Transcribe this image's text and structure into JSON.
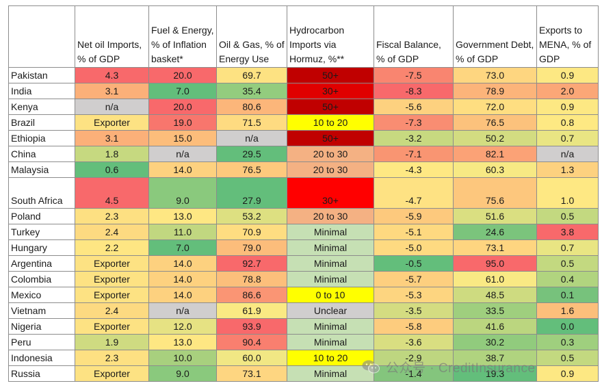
{
  "columns": [
    "",
    "Net oil Imports, % of GDP",
    "Fuel & Energy, % of Inflation basket*",
    "Oil & Gas, % of Energy Use",
    "Hydrocarbon Imports via Hormuz, %**",
    "Fiscal Balance, % of GDP",
    "Government Debt, % of GDP",
    "Exports to MENA, % of GDP"
  ],
  "rows": [
    {
      "country": "Pakistan",
      "cells": [
        {
          "v": "4.3",
          "c": "#f8696b"
        },
        {
          "v": "20.0",
          "c": "#f8696b"
        },
        {
          "v": "69.7",
          "c": "#fde282"
        },
        {
          "v": "50+",
          "c": "#c00000"
        },
        {
          "v": "-7.5",
          "c": "#f98570"
        },
        {
          "v": "73.0",
          "c": "#fed680"
        },
        {
          "v": "0.9",
          "c": "#fde883"
        }
      ]
    },
    {
      "country": "India",
      "cells": [
        {
          "v": "3.1",
          "c": "#fbb079"
        },
        {
          "v": "7.0",
          "c": "#63be7b"
        },
        {
          "v": "35.4",
          "c": "#93cc7e"
        },
        {
          "v": "30+",
          "c": "#e00000"
        },
        {
          "v": "-8.3",
          "c": "#f8696b"
        },
        {
          "v": "78.9",
          "c": "#fcb47a"
        },
        {
          "v": "2.0",
          "c": "#fba777"
        }
      ]
    },
    {
      "country": "Kenya",
      "cells": [
        {
          "v": "n/a",
          "c": "#d0cece"
        },
        {
          "v": "20.0",
          "c": "#f8696b"
        },
        {
          "v": "80.6",
          "c": "#fcb67a"
        },
        {
          "v": "50+",
          "c": "#c00000"
        },
        {
          "v": "-5.6",
          "c": "#fdd17f"
        },
        {
          "v": "72.0",
          "c": "#fede81"
        },
        {
          "v": "0.9",
          "c": "#fde883"
        }
      ]
    },
    {
      "country": "Brazil",
      "cells": [
        {
          "v": "Exporter",
          "c": "#fde283"
        },
        {
          "v": "19.0",
          "c": "#f8766d"
        },
        {
          "v": "71.5",
          "c": "#fedb81"
        },
        {
          "v": "10 to 20",
          "c": "#ffff00"
        },
        {
          "v": "-7.3",
          "c": "#f98d72"
        },
        {
          "v": "76.5",
          "c": "#fcc27c"
        },
        {
          "v": "0.8",
          "c": "#fee983"
        }
      ]
    },
    {
      "country": "Ethiopia",
      "cells": [
        {
          "v": "3.1",
          "c": "#fbb079"
        },
        {
          "v": "15.0",
          "c": "#fcbd7b"
        },
        {
          "v": "n/a",
          "c": "#d0cece"
        },
        {
          "v": "50+",
          "c": "#c00000"
        },
        {
          "v": "-3.2",
          "c": "#c7d980"
        },
        {
          "v": "50.2",
          "c": "#d3dc81"
        },
        {
          "v": "0.7",
          "c": "#e9e583"
        }
      ]
    },
    {
      "country": "China",
      "cells": [
        {
          "v": "1.8",
          "c": "#c6d980"
        },
        {
          "v": "n/a",
          "c": "#d0cece"
        },
        {
          "v": "29.5",
          "c": "#63be7b"
        },
        {
          "v": "20 to 30",
          "c": "#f4b183"
        },
        {
          "v": "-7.1",
          "c": "#f99572"
        },
        {
          "v": "82.1",
          "c": "#fba276"
        },
        {
          "v": "n/a",
          "c": "#d0cece"
        }
      ]
    },
    {
      "country": "Malaysia",
      "cells": [
        {
          "v": "0.6",
          "c": "#63be7b"
        },
        {
          "v": "14.0",
          "c": "#fdd17f"
        },
        {
          "v": "76.5",
          "c": "#fdc97d"
        },
        {
          "v": "20 to 30",
          "c": "#f4b183"
        },
        {
          "v": "-4.3",
          "c": "#fee883"
        },
        {
          "v": "60.3",
          "c": "#f7e984"
        },
        {
          "v": "1.3",
          "c": "#fdd17f"
        }
      ]
    },
    {
      "country": "South Africa",
      "tall": true,
      "cells": [
        {
          "v": "4.5",
          "c": "#f8696b"
        },
        {
          "v": "9.0",
          "c": "#8ac97d"
        },
        {
          "v": "27.9",
          "c": "#63be7b"
        },
        {
          "v": "30+",
          "c": "#ff0000"
        },
        {
          "v": "-4.7",
          "c": "#fee283"
        },
        {
          "v": "75.6",
          "c": "#fdc77d"
        },
        {
          "v": "1.0",
          "c": "#fee883"
        }
      ]
    },
    {
      "country": "Poland",
      "cells": [
        {
          "v": "2.3",
          "c": "#fde082"
        },
        {
          "v": "13.0",
          "c": "#fee783"
        },
        {
          "v": "53.2",
          "c": "#dde081"
        },
        {
          "v": "20 to 30",
          "c": "#f4b183"
        },
        {
          "v": "-5.9",
          "c": "#fdc97d"
        },
        {
          "v": "51.6",
          "c": "#dadf81"
        },
        {
          "v": "0.5",
          "c": "#c3d980"
        }
      ]
    },
    {
      "country": "Turkey",
      "cells": [
        {
          "v": "2.4",
          "c": "#fdda81"
        },
        {
          "v": "11.0",
          "c": "#c1d780"
        },
        {
          "v": "70.9",
          "c": "#fedd81"
        },
        {
          "v": "Minimal",
          "c": "#c6e0b4"
        },
        {
          "v": "-5.1",
          "c": "#fed980"
        },
        {
          "v": "24.6",
          "c": "#7bc47c"
        },
        {
          "v": "3.8",
          "c": "#f8696b"
        }
      ]
    },
    {
      "country": "Hungary",
      "cells": [
        {
          "v": "2.2",
          "c": "#fee683"
        },
        {
          "v": "7.0",
          "c": "#63be7b"
        },
        {
          "v": "79.0",
          "c": "#fcbd7b"
        },
        {
          "v": "Minimal",
          "c": "#c6e0b4"
        },
        {
          "v": "-5.0",
          "c": "#feda81"
        },
        {
          "v": "73.1",
          "c": "#fed580"
        },
        {
          "v": "0.7",
          "c": "#e9e583"
        }
      ]
    },
    {
      "country": "Argentina",
      "cells": [
        {
          "v": "Exporter",
          "c": "#fde283"
        },
        {
          "v": "14.0",
          "c": "#fdd17f"
        },
        {
          "v": "92.7",
          "c": "#f8696b"
        },
        {
          "v": "Minimal",
          "c": "#c6e0b4"
        },
        {
          "v": "-0.5",
          "c": "#63be7b"
        },
        {
          "v": "95.0",
          "c": "#f8696b"
        },
        {
          "v": "0.5",
          "c": "#c3d980"
        }
      ]
    },
    {
      "country": "Colombia",
      "cells": [
        {
          "v": "Exporter",
          "c": "#fde283"
        },
        {
          "v": "14.0",
          "c": "#fdd17f"
        },
        {
          "v": "78.8",
          "c": "#fcbf7b"
        },
        {
          "v": "Minimal",
          "c": "#c6e0b4"
        },
        {
          "v": "-5.7",
          "c": "#fdcf7f"
        },
        {
          "v": "61.0",
          "c": "#f9e984"
        },
        {
          "v": "0.4",
          "c": "#b1d47f"
        }
      ]
    },
    {
      "country": "Mexico",
      "cells": [
        {
          "v": "Exporter",
          "c": "#fde283"
        },
        {
          "v": "14.0",
          "c": "#fdd17f"
        },
        {
          "v": "86.6",
          "c": "#fa9574"
        },
        {
          "v": "0 to 10",
          "c": "#ffff00"
        },
        {
          "v": "-5.3",
          "c": "#fdd580"
        },
        {
          "v": "48.5",
          "c": "#cedb80"
        },
        {
          "v": "0.1",
          "c": "#77c27c"
        }
      ]
    },
    {
      "country": "Vietnam",
      "cells": [
        {
          "v": "2.4",
          "c": "#fdda81"
        },
        {
          "v": "n/a",
          "c": "#d0cece"
        },
        {
          "v": "61.9",
          "c": "#fae983"
        },
        {
          "v": "Unclear",
          "c": "#d0cece"
        },
        {
          "v": "-3.5",
          "c": "#d4dc81"
        },
        {
          "v": "33.5",
          "c": "#9fcf7e"
        },
        {
          "v": "1.6",
          "c": "#fcbf7b"
        }
      ]
    },
    {
      "country": "Nigeria",
      "cells": [
        {
          "v": "Exporter",
          "c": "#fde283"
        },
        {
          "v": "12.0",
          "c": "#e6e283"
        },
        {
          "v": "93.9",
          "c": "#f8696b"
        },
        {
          "v": "Minimal",
          "c": "#c6e0b4"
        },
        {
          "v": "-5.8",
          "c": "#fdcc7e"
        },
        {
          "v": "41.6",
          "c": "#bbd67f"
        },
        {
          "v": "0.0",
          "c": "#63be7b"
        }
      ]
    },
    {
      "country": "Peru",
      "cells": [
        {
          "v": "1.9",
          "c": "#cfdb81"
        },
        {
          "v": "13.0",
          "c": "#fee783"
        },
        {
          "v": "90.4",
          "c": "#f97f6f"
        },
        {
          "v": "Minimal",
          "c": "#c6e0b4"
        },
        {
          "v": "-3.6",
          "c": "#d9de81"
        },
        {
          "v": "30.2",
          "c": "#91cb7d"
        },
        {
          "v": "0.3",
          "c": "#9fcf7e"
        }
      ]
    },
    {
      "country": "Indonesia",
      "cells": [
        {
          "v": "2.3",
          "c": "#fde082"
        },
        {
          "v": "10.0",
          "c": "#a8d07e"
        },
        {
          "v": "60.0",
          "c": "#f1e784"
        },
        {
          "v": "10 to 20",
          "c": "#ffff00"
        },
        {
          "v": "-2.9",
          "c": "#bed680"
        },
        {
          "v": "38.7",
          "c": "#b0d37f"
        },
        {
          "v": "0.5",
          "c": "#c3d980"
        }
      ]
    },
    {
      "country": "Russia",
      "cells": [
        {
          "v": "Exporter",
          "c": "#fde283"
        },
        {
          "v": "9.0",
          "c": "#8ac97d"
        },
        {
          "v": "73.1",
          "c": "#fed681"
        },
        {
          "v": "Minimal",
          "c": "#c6e0b4"
        },
        {
          "v": "-1.4",
          "c": "#84c57d"
        },
        {
          "v": "19.3",
          "c": "#63be7b"
        },
        {
          "v": "0.9",
          "c": "#fde883"
        }
      ]
    }
  ],
  "watermark": {
    "text": "公众号 · CreditInsurance",
    "icon": "wechat-icon"
  }
}
